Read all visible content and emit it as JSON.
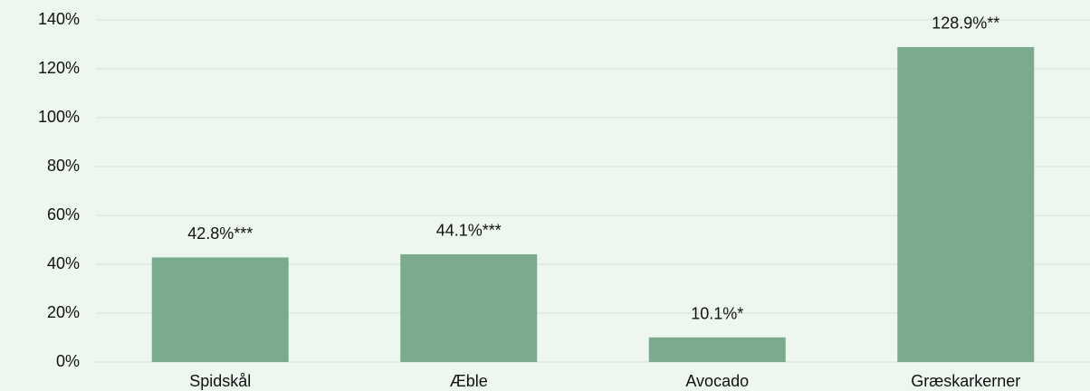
{
  "chart_data": {
    "type": "bar",
    "categories": [
      "Spidskål",
      "Æble",
      "Avocado",
      "Græskarkerner"
    ],
    "values": [
      42.8,
      44.1,
      10.1,
      128.9
    ],
    "value_labels": [
      "42.8%***",
      "44.1%***",
      "10.1%*",
      "128.9%**"
    ],
    "color": "#7aab8c",
    "ylim": [
      0,
      140
    ],
    "yticks": [
      {
        "value": 0,
        "label": "0%"
      },
      {
        "value": 20,
        "label": "20%"
      },
      {
        "value": 40,
        "label": "40%"
      },
      {
        "value": 60,
        "label": "60%"
      },
      {
        "value": 80,
        "label": "80%"
      },
      {
        "value": 100,
        "label": "100%"
      },
      {
        "value": 120,
        "label": "120%"
      },
      {
        "value": 140,
        "label": "140%"
      }
    ],
    "grid": true
  }
}
